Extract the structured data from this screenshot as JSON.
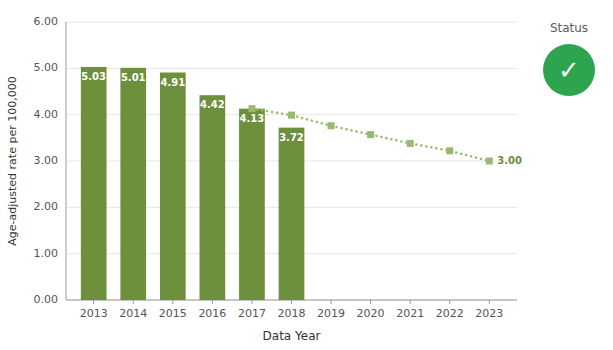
{
  "chart_data": {
    "type": "bar",
    "x_label": "Data Year",
    "y_label": "Age-adjusted rate per 100,000",
    "xlim": [
      2012.3,
      2023.7
    ],
    "xticks": [
      2013,
      2014,
      2015,
      2016,
      2017,
      2018,
      2019,
      2020,
      2021,
      2022,
      2023
    ],
    "ylim": [
      0,
      6.0
    ],
    "yticks": [
      {
        "value": 0.0,
        "label": "0.00"
      },
      {
        "value": 1.0,
        "label": "1.00"
      },
      {
        "value": 2.0,
        "label": "2.00"
      },
      {
        "value": 3.0,
        "label": "3.00"
      },
      {
        "value": 4.0,
        "label": "4.00"
      },
      {
        "value": 5.0,
        "label": "5.00"
      },
      {
        "value": 6.0,
        "label": "6.00"
      }
    ],
    "grid": true,
    "series": [
      {
        "type": "bar",
        "color": "#6e8f3c",
        "data_labels": true,
        "x": [
          2013,
          2014,
          2015,
          2016,
          2017,
          2018
        ],
        "values": [
          5.03,
          5.01,
          4.91,
          4.42,
          4.13,
          3.72
        ]
      },
      {
        "type": "line",
        "color": "#9ab870",
        "line_style": "dotted",
        "marker": "square",
        "x": [
          2017,
          2018,
          2019,
          2020,
          2021,
          2022,
          2023
        ],
        "values": [
          4.13,
          3.99,
          3.76,
          3.57,
          3.38,
          3.22,
          3.0
        ]
      }
    ],
    "annotations": [
      {
        "text": "3.00",
        "x": 2023,
        "y": 3.0,
        "color": "#6b8e3e"
      },
      {
        "text": "Status"
      },
      {
        "text": "✓",
        "color": "#2da44e"
      }
    ]
  }
}
